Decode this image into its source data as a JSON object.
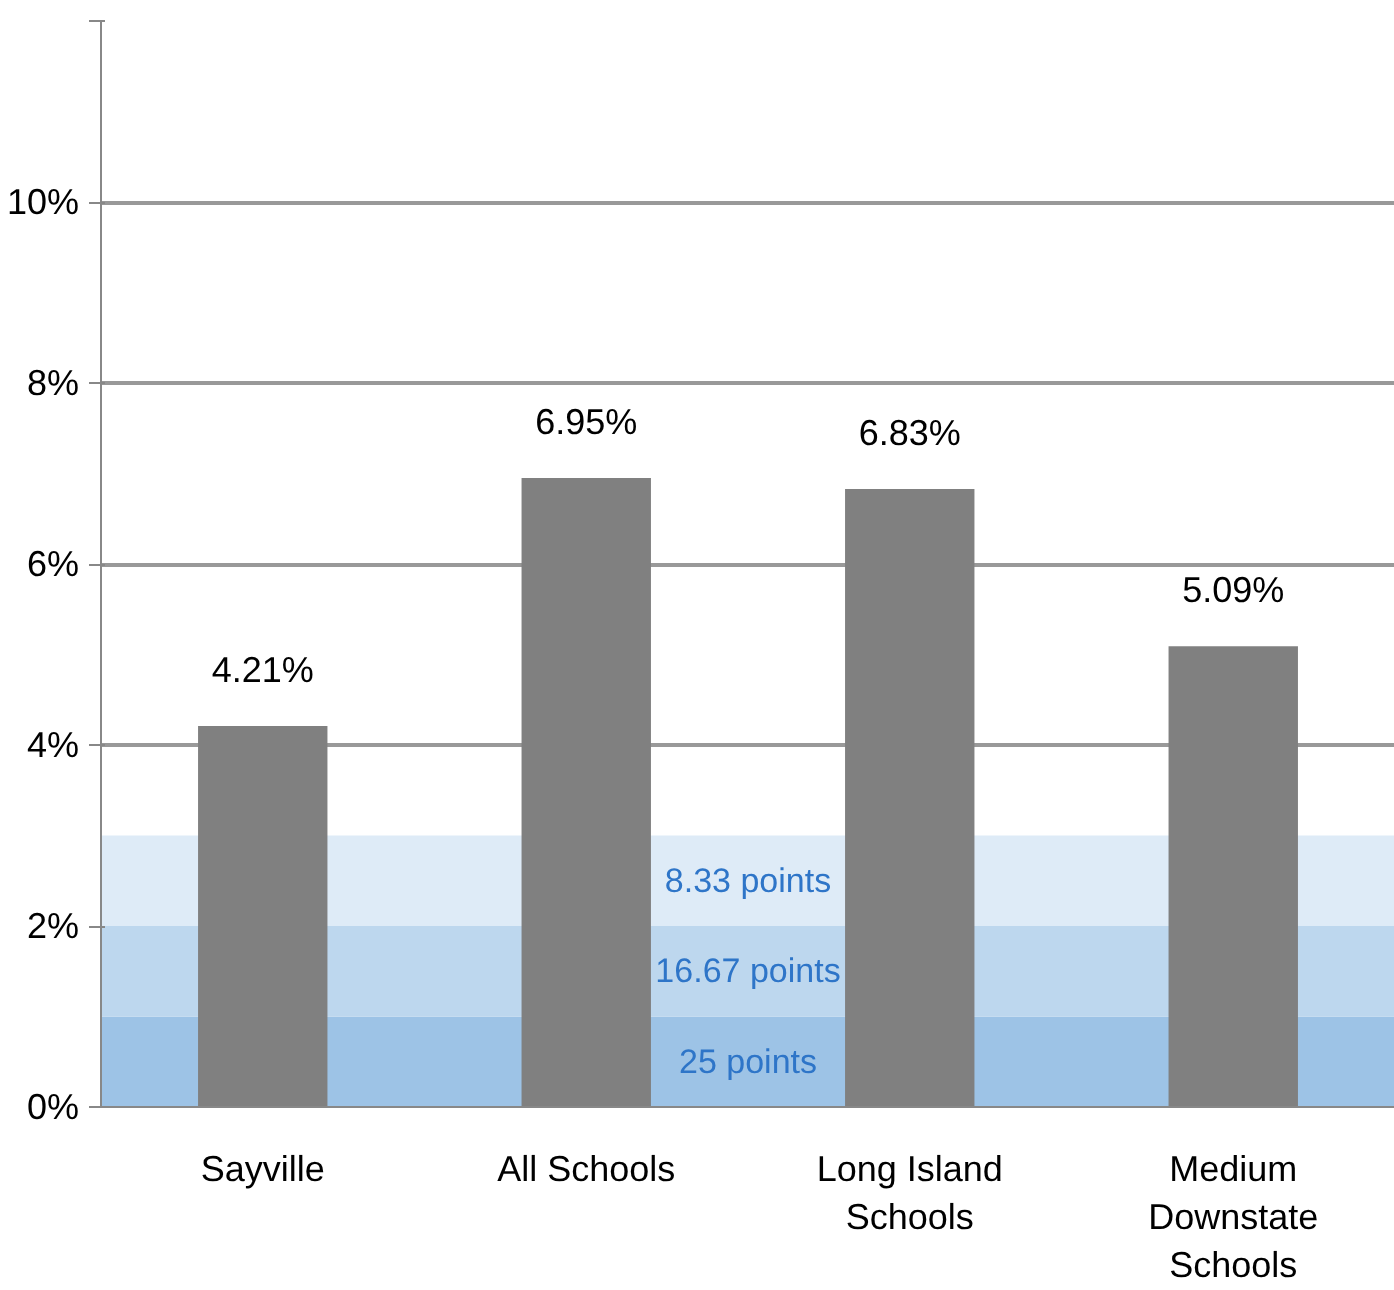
{
  "chart_data": {
    "type": "bar",
    "categories": [
      "Sayville",
      "All Schools",
      "Long Island Schools",
      "Medium Downstate Schools"
    ],
    "series": [
      {
        "color": "#808080",
        "values": [
          4.21,
          6.95,
          6.83,
          5.09
        ],
        "value_labels": [
          "4.21%",
          "6.95%",
          "6.83%",
          "5.09%"
        ]
      }
    ],
    "ylim": [
      0,
      12
    ],
    "yticks": [
      {
        "value": 0,
        "label": "0%"
      },
      {
        "value": 2,
        "label": "2%"
      },
      {
        "value": 4,
        "label": "4%"
      },
      {
        "value": 6,
        "label": "6%"
      },
      {
        "value": 8,
        "label": "8%"
      },
      {
        "value": 10,
        "label": "10%"
      },
      {
        "value": 12,
        "label": null
      }
    ],
    "grid": "y",
    "bands": [
      {
        "axis": "y",
        "from": 0,
        "to": 1,
        "label": "25 points",
        "color": "#9dc3e6"
      },
      {
        "axis": "y",
        "from": 1,
        "to": 2,
        "label": "16.67 points",
        "color": "#bdd7ee"
      },
      {
        "axis": "y",
        "from": 2,
        "to": 3,
        "label": "8.33 points",
        "color": "#deebf7"
      }
    ]
  }
}
